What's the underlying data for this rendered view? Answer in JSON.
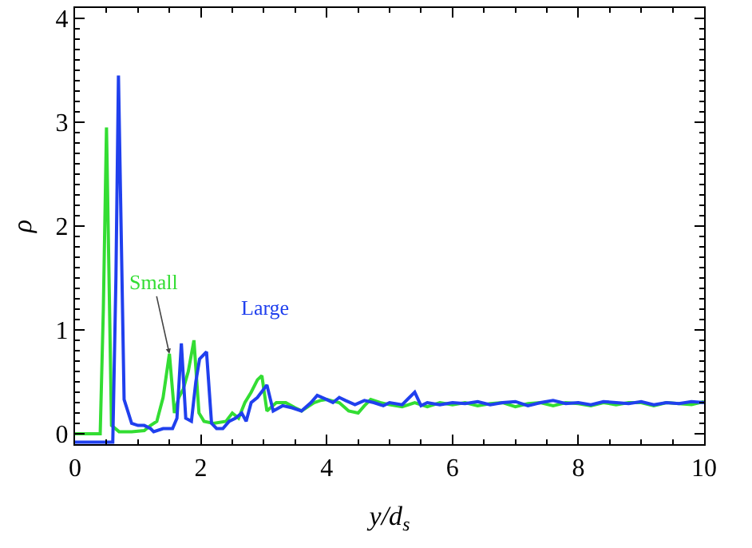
{
  "chart_data": {
    "type": "line",
    "xlabel": "y/d$_{s}$",
    "ylabel": "ρ",
    "xlim": [
      0,
      10
    ],
    "xticks": [
      0,
      2,
      4,
      6,
      8,
      10
    ],
    "ylim": [
      -0.1,
      4.1
    ],
    "yticks": [
      0,
      1,
      2,
      3,
      4
    ],
    "line_style": "solid",
    "series": [
      {
        "color": "#33dd33",
        "x": [
          0,
          0.4,
          0.45,
          0.5,
          0.58,
          0.7,
          0.9,
          1.1,
          1.2,
          1.3,
          1.4,
          1.5,
          1.58,
          1.65,
          1.72,
          1.8,
          1.89,
          1.97,
          2.05,
          2.2,
          2.4,
          2.5,
          2.6,
          2.7,
          2.8,
          2.9,
          2.97,
          3.05,
          3.2,
          3.35,
          3.5,
          3.6,
          3.8,
          3.9,
          4.0,
          4.2,
          4.35,
          4.5,
          4.6,
          4.7,
          4.85,
          5.0,
          5.2,
          5.4,
          5.6,
          5.8,
          6.0,
          6.2,
          6.4,
          6.6,
          6.8,
          7.0,
          7.2,
          7.4,
          7.6,
          7.8,
          8.0,
          8.2,
          8.4,
          8.6,
          8.8,
          9.0,
          9.2,
          9.4,
          9.6,
          9.8,
          10
        ],
        "values": [
          0,
          0,
          1.2,
          2.95,
          0.08,
          0.02,
          0.02,
          0.03,
          0.08,
          0.12,
          0.35,
          0.77,
          0.2,
          0.35,
          0.43,
          0.6,
          0.9,
          0.2,
          0.12,
          0.1,
          0.12,
          0.2,
          0.15,
          0.3,
          0.4,
          0.52,
          0.56,
          0.22,
          0.3,
          0.3,
          0.25,
          0.22,
          0.3,
          0.32,
          0.33,
          0.3,
          0.22,
          0.2,
          0.27,
          0.33,
          0.3,
          0.28,
          0.26,
          0.3,
          0.26,
          0.3,
          0.28,
          0.3,
          0.27,
          0.29,
          0.3,
          0.26,
          0.29,
          0.3,
          0.27,
          0.3,
          0.29,
          0.27,
          0.3,
          0.28,
          0.3,
          0.3,
          0.27,
          0.3,
          0.29,
          0.28,
          0.31
        ]
      },
      {
        "color": "#2040ee",
        "x": [
          0,
          0.6,
          0.65,
          0.69,
          0.78,
          0.9,
          1.0,
          1.1,
          1.2,
          1.25,
          1.4,
          1.55,
          1.62,
          1.69,
          1.76,
          1.85,
          1.92,
          1.98,
          2.09,
          2.17,
          2.25,
          2.35,
          2.45,
          2.55,
          2.65,
          2.72,
          2.8,
          2.9,
          3.05,
          3.15,
          3.3,
          3.45,
          3.6,
          3.75,
          3.85,
          4.0,
          4.1,
          4.2,
          4.3,
          4.45,
          4.6,
          4.75,
          4.9,
          5.0,
          5.2,
          5.4,
          5.5,
          5.6,
          5.8,
          6.0,
          6.2,
          6.4,
          6.6,
          6.8,
          7.0,
          7.2,
          7.4,
          7.6,
          7.8,
          8.0,
          8.2,
          8.4,
          8.6,
          8.8,
          9.0,
          9.2,
          9.4,
          9.6,
          9.8,
          10
        ],
        "values": [
          -0.08,
          -0.08,
          1.5,
          3.45,
          0.33,
          0.1,
          0.08,
          0.08,
          0.05,
          0.02,
          0.05,
          0.05,
          0.15,
          0.87,
          0.15,
          0.12,
          0.5,
          0.72,
          0.79,
          0.1,
          0.05,
          0.05,
          0.12,
          0.15,
          0.2,
          0.12,
          0.3,
          0.35,
          0.47,
          0.22,
          0.27,
          0.25,
          0.22,
          0.3,
          0.37,
          0.33,
          0.3,
          0.35,
          0.32,
          0.28,
          0.32,
          0.3,
          0.27,
          0.3,
          0.28,
          0.4,
          0.27,
          0.3,
          0.28,
          0.3,
          0.29,
          0.31,
          0.28,
          0.3,
          0.31,
          0.27,
          0.3,
          0.32,
          0.29,
          0.3,
          0.28,
          0.31,
          0.3,
          0.29,
          0.31,
          0.28,
          0.3,
          0.29,
          0.31,
          0.3
        ]
      }
    ],
    "annotations": [
      {
        "text": "Small",
        "x": 1.5,
        "y": 0.77
      },
      "Large"
    ]
  }
}
